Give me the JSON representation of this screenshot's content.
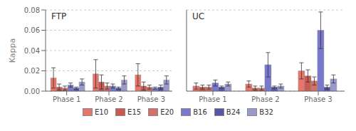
{
  "chart_data": [
    {
      "type": "bar",
      "title": "FTP",
      "y_label": "Kappa",
      "categories": [
        "Phase 1",
        "Phase 2",
        "Phase 3"
      ],
      "series": [
        {
          "name": "E10",
          "color": "#e8746a",
          "values": [
            0.013,
            0.017,
            0.016
          ],
          "errors": [
            0.01,
            0.014,
            0.011
          ]
        },
        {
          "name": "E15",
          "color": "#c95a50",
          "values": [
            0.004,
            0.009,
            0.005
          ],
          "errors": [
            0.003,
            0.007,
            0.004
          ]
        },
        {
          "name": "E20",
          "color": "#d47068",
          "values": [
            0.003,
            0.005,
            0.004
          ],
          "errors": [
            0.002,
            0.003,
            0.002
          ]
        },
        {
          "name": "B16",
          "color": "#7878cc",
          "values": [
            0.006,
            0.005,
            0.003
          ],
          "errors": [
            0.002,
            0.002,
            0.001
          ]
        },
        {
          "name": "B24",
          "color": "#5555aa",
          "values": [
            0.003,
            0.003,
            0.004
          ],
          "errors": [
            0.001,
            0.001,
            0.002
          ]
        },
        {
          "name": "B32",
          "color": "#9999cc",
          "values": [
            0.009,
            0.011,
            0.011
          ],
          "errors": [
            0.003,
            0.004,
            0.004
          ]
        }
      ],
      "ylim": [
        0,
        0.08
      ],
      "yticks": [
        {
          "value": 0.0,
          "label": "0.00"
        },
        {
          "value": 0.02,
          "label": "0.02"
        },
        {
          "value": 0.04,
          "label": "0.04"
        },
        {
          "value": 0.06,
          "label": "0.06"
        },
        {
          "value": 0.08,
          "label": "0.08"
        }
      ],
      "grid": true,
      "legend": "bottom"
    },
    {
      "type": "bar",
      "title": "UC",
      "categories": [
        "Phase 1",
        "Phase 2",
        "Phase 3"
      ],
      "series": [
        {
          "name": "E10",
          "color": "#e8746a",
          "values": [
            0.005,
            0.007,
            0.02
          ],
          "errors": [
            0.003,
            0.003,
            0.008
          ]
        },
        {
          "name": "E15",
          "color": "#c95a50",
          "values": [
            0.004,
            0.003,
            0.015
          ],
          "errors": [
            0.002,
            0.002,
            0.006
          ]
        },
        {
          "name": "E20",
          "color": "#d47068",
          "values": [
            0.004,
            0.003,
            0.01
          ],
          "errors": [
            0.002,
            0.002,
            0.004
          ]
        },
        {
          "name": "B16",
          "color": "#7878cc",
          "values": [
            0.008,
            0.026,
            0.06
          ],
          "errors": [
            0.003,
            0.012,
            0.018
          ]
        },
        {
          "name": "B24",
          "color": "#5555aa",
          "values": [
            0.004,
            0.004,
            0.004
          ],
          "errors": [
            0.001,
            0.001,
            0.002
          ]
        },
        {
          "name": "B32",
          "color": "#9999cc",
          "values": [
            0.007,
            0.005,
            0.012
          ],
          "errors": [
            0.002,
            0.002,
            0.004
          ]
        }
      ],
      "ylim": [
        0,
        0.08
      ],
      "yticks": [
        {
          "value": 0.0,
          "label": "0.00"
        },
        {
          "value": 0.02,
          "label": "0.02"
        },
        {
          "value": 0.04,
          "label": "0.04"
        },
        {
          "value": 0.06,
          "label": "0.06"
        },
        {
          "value": 0.08,
          "label": "0.08"
        }
      ],
      "grid": true,
      "tick_labels": "x"
    }
  ]
}
